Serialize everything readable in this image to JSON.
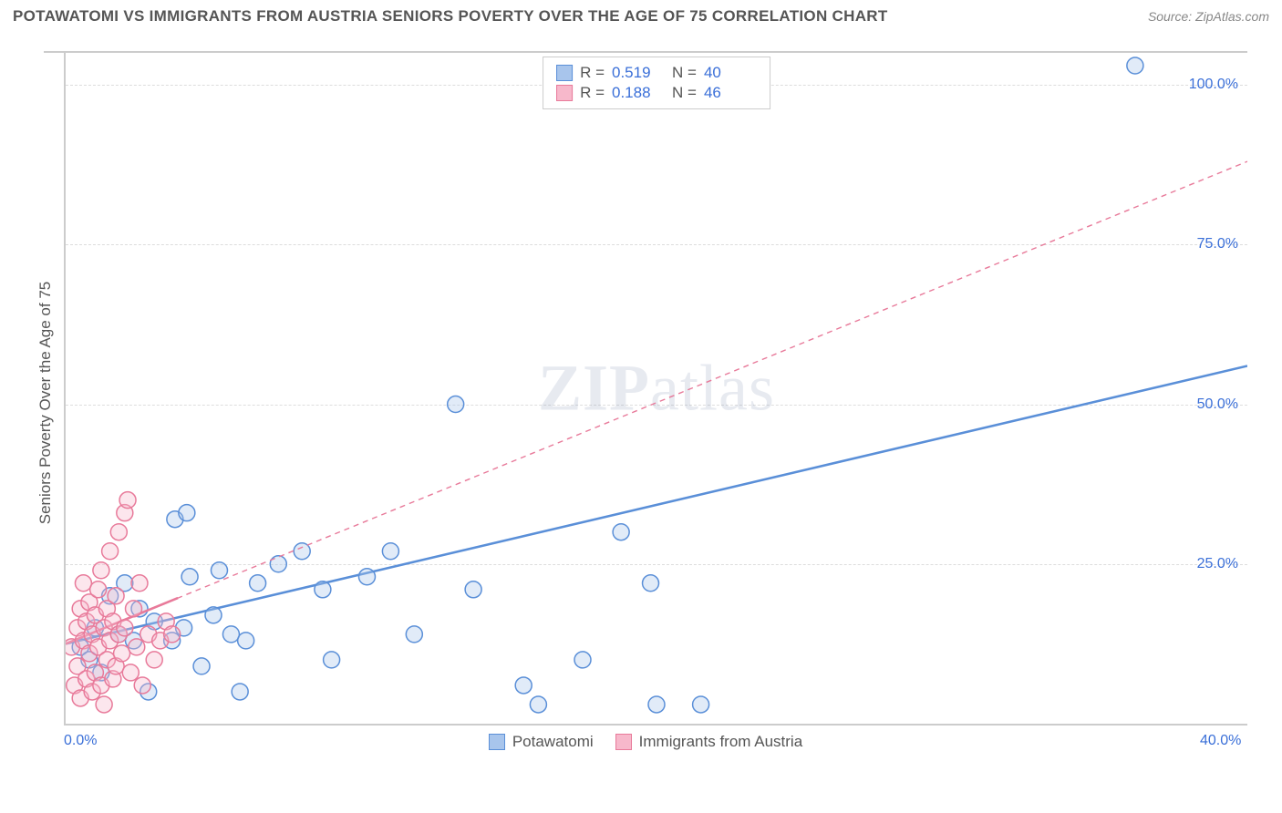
{
  "title": "POTAWATOMI VS IMMIGRANTS FROM AUSTRIA SENIORS POVERTY OVER THE AGE OF 75 CORRELATION CHART",
  "source_label": "Source: ZipAtlas.com",
  "y_axis_title": "Seniors Poverty Over the Age of 75",
  "watermark": {
    "part1": "ZIP",
    "part2": "atlas"
  },
  "chart": {
    "type": "scatter",
    "xlim": [
      0,
      40
    ],
    "ylim": [
      0,
      105
    ],
    "x_ticks": [
      {
        "value": 0,
        "label": "0.0%"
      },
      {
        "value": 40,
        "label": "40.0%"
      }
    ],
    "y_ticks": [
      {
        "value": 25,
        "label": "25.0%"
      },
      {
        "value": 50,
        "label": "50.0%"
      },
      {
        "value": 75,
        "label": "75.0%"
      },
      {
        "value": 100,
        "label": "100.0%"
      }
    ],
    "grid_color": "#dddddd",
    "background_color": "#ffffff",
    "marker_radius": 9,
    "marker_stroke_width": 1.5,
    "marker_fill_opacity": 0.35,
    "series": [
      {
        "name": "Potawatomi",
        "key": "potawatomi",
        "color": "#5a8fd8",
        "fill": "#a8c5ec",
        "R": "0.519",
        "N": "40",
        "trend": {
          "x1": 0,
          "y1": 12.5,
          "x2": 40,
          "y2": 56,
          "dash": "none",
          "width": 2.6
        },
        "points": [
          [
            0.5,
            12
          ],
          [
            0.8,
            10
          ],
          [
            1.0,
            15
          ],
          [
            1.2,
            8
          ],
          [
            1.5,
            20
          ],
          [
            1.8,
            14
          ],
          [
            2.0,
            22
          ],
          [
            2.3,
            13
          ],
          [
            2.5,
            18
          ],
          [
            2.8,
            5
          ],
          [
            3.0,
            16
          ],
          [
            3.6,
            13
          ],
          [
            3.7,
            32
          ],
          [
            4.1,
            33
          ],
          [
            4.0,
            15
          ],
          [
            4.2,
            23
          ],
          [
            4.6,
            9
          ],
          [
            5.0,
            17
          ],
          [
            5.2,
            24
          ],
          [
            5.6,
            14
          ],
          [
            5.9,
            5
          ],
          [
            6.1,
            13
          ],
          [
            6.5,
            22
          ],
          [
            7.2,
            25
          ],
          [
            8.0,
            27
          ],
          [
            8.7,
            21
          ],
          [
            9.0,
            10
          ],
          [
            10.2,
            23
          ],
          [
            11.0,
            27
          ],
          [
            11.8,
            14
          ],
          [
            13.2,
            50
          ],
          [
            13.8,
            21
          ],
          [
            15.5,
            6
          ],
          [
            16.0,
            3
          ],
          [
            17.5,
            10
          ],
          [
            18.8,
            30
          ],
          [
            19.8,
            22
          ],
          [
            20.0,
            3
          ],
          [
            21.5,
            3
          ],
          [
            36.2,
            103
          ]
        ]
      },
      {
        "name": "Immigrants from Austria",
        "key": "austria",
        "color": "#e87a9a",
        "fill": "#f7b8cb",
        "R": "0.188",
        "N": "46",
        "trend": {
          "x1": 0,
          "y1": 12.5,
          "x2": 40,
          "y2": 88,
          "dash": "6,5",
          "width": 1.4
        },
        "trend_visible_xmax": 3.8,
        "points": [
          [
            0.2,
            12
          ],
          [
            0.3,
            6
          ],
          [
            0.4,
            15
          ],
          [
            0.4,
            9
          ],
          [
            0.5,
            18
          ],
          [
            0.5,
            4
          ],
          [
            0.6,
            13
          ],
          [
            0.6,
            22
          ],
          [
            0.7,
            16
          ],
          [
            0.7,
            7
          ],
          [
            0.8,
            11
          ],
          [
            0.8,
            19
          ],
          [
            0.9,
            14
          ],
          [
            0.9,
            5
          ],
          [
            1.0,
            17
          ],
          [
            1.0,
            8
          ],
          [
            1.1,
            21
          ],
          [
            1.1,
            12
          ],
          [
            1.2,
            6
          ],
          [
            1.2,
            24
          ],
          [
            1.3,
            15
          ],
          [
            1.3,
            3
          ],
          [
            1.4,
            18
          ],
          [
            1.4,
            10
          ],
          [
            1.5,
            13
          ],
          [
            1.5,
            27
          ],
          [
            1.6,
            7
          ],
          [
            1.6,
            16
          ],
          [
            1.7,
            20
          ],
          [
            1.7,
            9
          ],
          [
            1.8,
            14
          ],
          [
            1.8,
            30
          ],
          [
            1.9,
            11
          ],
          [
            2.0,
            33
          ],
          [
            2.0,
            15
          ],
          [
            2.1,
            35
          ],
          [
            2.2,
            8
          ],
          [
            2.3,
            18
          ],
          [
            2.4,
            12
          ],
          [
            2.5,
            22
          ],
          [
            2.6,
            6
          ],
          [
            2.8,
            14
          ],
          [
            3.0,
            10
          ],
          [
            3.2,
            13
          ],
          [
            3.4,
            16
          ],
          [
            3.6,
            14
          ]
        ]
      }
    ]
  },
  "legend_top_labels": {
    "R": "R =",
    "N": "N ="
  },
  "legend_bottom": [
    {
      "key": "potawatomi",
      "label": "Potawatomi"
    },
    {
      "key": "austria",
      "label": "Immigrants from Austria"
    }
  ]
}
